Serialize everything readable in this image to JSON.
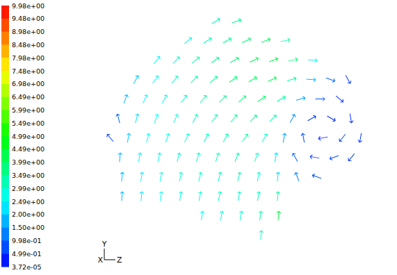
{
  "chart_data": {
    "type": "vector",
    "tick_labels": false,
    "marker": "arrow",
    "xlim": [
      0,
      431
    ],
    "ylim": [
      0,
      396
    ],
    "vectors": {
      "x": [
        170,
        200,
        130,
        158,
        186,
        214,
        242,
        270,
        85,
        113,
        141,
        169,
        197,
        225,
        253,
        281,
        309,
        55,
        83,
        111,
        139,
        167,
        195,
        223,
        251,
        279,
        307,
        335,
        360,
        40,
        68,
        96,
        124,
        152,
        180,
        208,
        236,
        264,
        292,
        320,
        348,
        30,
        56,
        84,
        112,
        140,
        168,
        196,
        224,
        252,
        280,
        308,
        336,
        364,
        18,
        44,
        72,
        100,
        128,
        156,
        184,
        212,
        240,
        268,
        296,
        324,
        352,
        378,
        32,
        60,
        88,
        116,
        144,
        172,
        200,
        228,
        256,
        284,
        312,
        340,
        365,
        35,
        63,
        91,
        119,
        147,
        175,
        203,
        231,
        259,
        287,
        315,
        35,
        63,
        91,
        119,
        147,
        175,
        203,
        231,
        259,
        150,
        178,
        206,
        234,
        260,
        235
      ],
      "y": [
        366,
        366,
        338,
        338,
        338,
        338,
        338,
        338,
        310,
        310,
        310,
        310,
        310,
        310,
        310,
        310,
        310,
        282,
        282,
        282,
        282,
        282,
        282,
        282,
        282,
        282,
        282,
        282,
        282,
        254,
        254,
        254,
        254,
        254,
        254,
        254,
        254,
        254,
        254,
        254,
        254,
        226,
        226,
        226,
        226,
        226,
        226,
        226,
        226,
        226,
        226,
        226,
        226,
        226,
        198,
        198,
        198,
        198,
        198,
        198,
        198,
        198,
        198,
        198,
        198,
        198,
        198,
        198,
        170,
        170,
        170,
        170,
        170,
        170,
        170,
        170,
        170,
        170,
        170,
        170,
        170,
        142,
        142,
        142,
        142,
        142,
        142,
        142,
        142,
        142,
        142,
        142,
        114,
        114,
        114,
        114,
        114,
        114,
        114,
        114,
        114,
        86,
        86,
        86,
        86,
        86,
        58
      ],
      "direction": [
        60,
        70,
        50,
        55,
        60,
        65,
        70,
        80,
        40,
        45,
        50,
        55,
        60,
        65,
        70,
        80,
        95,
        30,
        35,
        40,
        45,
        50,
        55,
        60,
        65,
        75,
        95,
        110,
        150,
        20,
        25,
        30,
        35,
        40,
        45,
        50,
        55,
        60,
        75,
        90,
        130,
        345,
        15,
        20,
        25,
        30,
        35,
        40,
        45,
        45,
        30,
        60,
        120,
        170,
        320,
        10,
        15,
        20,
        25,
        30,
        30,
        35,
        30,
        10,
        350,
        260,
        220,
        190,
        5,
        10,
        12,
        15,
        18,
        20,
        22,
        20,
        10,
        330,
        280,
        250,
        220,
        5,
        8,
        10,
        12,
        14,
        15,
        15,
        12,
        5,
        340,
        290,
        5,
        5,
        8,
        10,
        10,
        12,
        12,
        10,
        5,
        8,
        10,
        10,
        8,
        5,
        5
      ],
      "magnitude": [
        3.2,
        3.5,
        2.8,
        3.2,
        3.6,
        3.9,
        4.0,
        3.4,
        2.4,
        2.9,
        3.3,
        3.6,
        3.9,
        4.2,
        4.3,
        3.8,
        2.6,
        2.0,
        2.6,
        3.0,
        3.3,
        3.6,
        3.9,
        4.1,
        4.2,
        3.5,
        1.8,
        1.0,
        0.6,
        1.8,
        2.4,
        2.8,
        3.1,
        3.4,
        3.6,
        3.8,
        3.9,
        3.4,
        1.6,
        0.8,
        0.5,
        1.0,
        2.2,
        2.6,
        2.9,
        3.1,
        3.3,
        3.5,
        3.6,
        3.2,
        1.4,
        0.6,
        0.4,
        0.5,
        0.6,
        2.0,
        2.5,
        2.8,
        3.0,
        3.2,
        3.3,
        3.4,
        3.0,
        1.6,
        0.7,
        0.3,
        0.6,
        0.5,
        1.8,
        2.4,
        2.7,
        2.9,
        3.0,
        3.1,
        3.2,
        3.0,
        2.2,
        1.0,
        0.6,
        0.7,
        0.5,
        1.9,
        2.4,
        2.7,
        2.9,
        3.0,
        3.1,
        3.1,
        2.9,
        2.3,
        1.2,
        0.8,
        1.8,
        2.3,
        2.6,
        2.8,
        2.9,
        3.0,
        3.0,
        3.1,
        3.4,
        2.7,
        2.8,
        2.9,
        3.4,
        4.4,
        3.0
      ]
    },
    "colorbar": {
      "range": [
        3.72e-05,
        9.98
      ],
      "ticks": [
        {
          "value": 9.98,
          "label": "9.98e+00"
        },
        {
          "value": 9.48,
          "label": "9.48e+00"
        },
        {
          "value": 8.98,
          "label": "8.98e+00"
        },
        {
          "value": 8.48,
          "label": "8.48e+00"
        },
        {
          "value": 7.98,
          "label": "7.98e+00"
        },
        {
          "value": 7.48,
          "label": "7.48e+00"
        },
        {
          "value": 6.98,
          "label": "6.98e+00"
        },
        {
          "value": 6.49,
          "label": "6.49e+00"
        },
        {
          "value": 5.99,
          "label": "5.99e+00"
        },
        {
          "value": 5.49,
          "label": "5.49e+00"
        },
        {
          "value": 4.99,
          "label": "4.99e+00"
        },
        {
          "value": 4.49,
          "label": "4.49e+00"
        },
        {
          "value": 3.99,
          "label": "3.99e+00"
        },
        {
          "value": 3.49,
          "label": "3.49e+00"
        },
        {
          "value": 2.99,
          "label": "2.99e+00"
        },
        {
          "value": 2.49,
          "label": "2.49e+00"
        },
        {
          "value": 2.0,
          "label": "2.00e+00"
        },
        {
          "value": 1.5,
          "label": "1.50e+00"
        },
        {
          "value": 0.998,
          "label": "9.98e-01"
        },
        {
          "value": 0.499,
          "label": "4.99e-01"
        },
        {
          "value": 3.72e-05,
          "label": "3.72e-05"
        }
      ]
    },
    "triad": {
      "vertical": "Y",
      "depth": "X",
      "horizontal": "Z"
    }
  }
}
